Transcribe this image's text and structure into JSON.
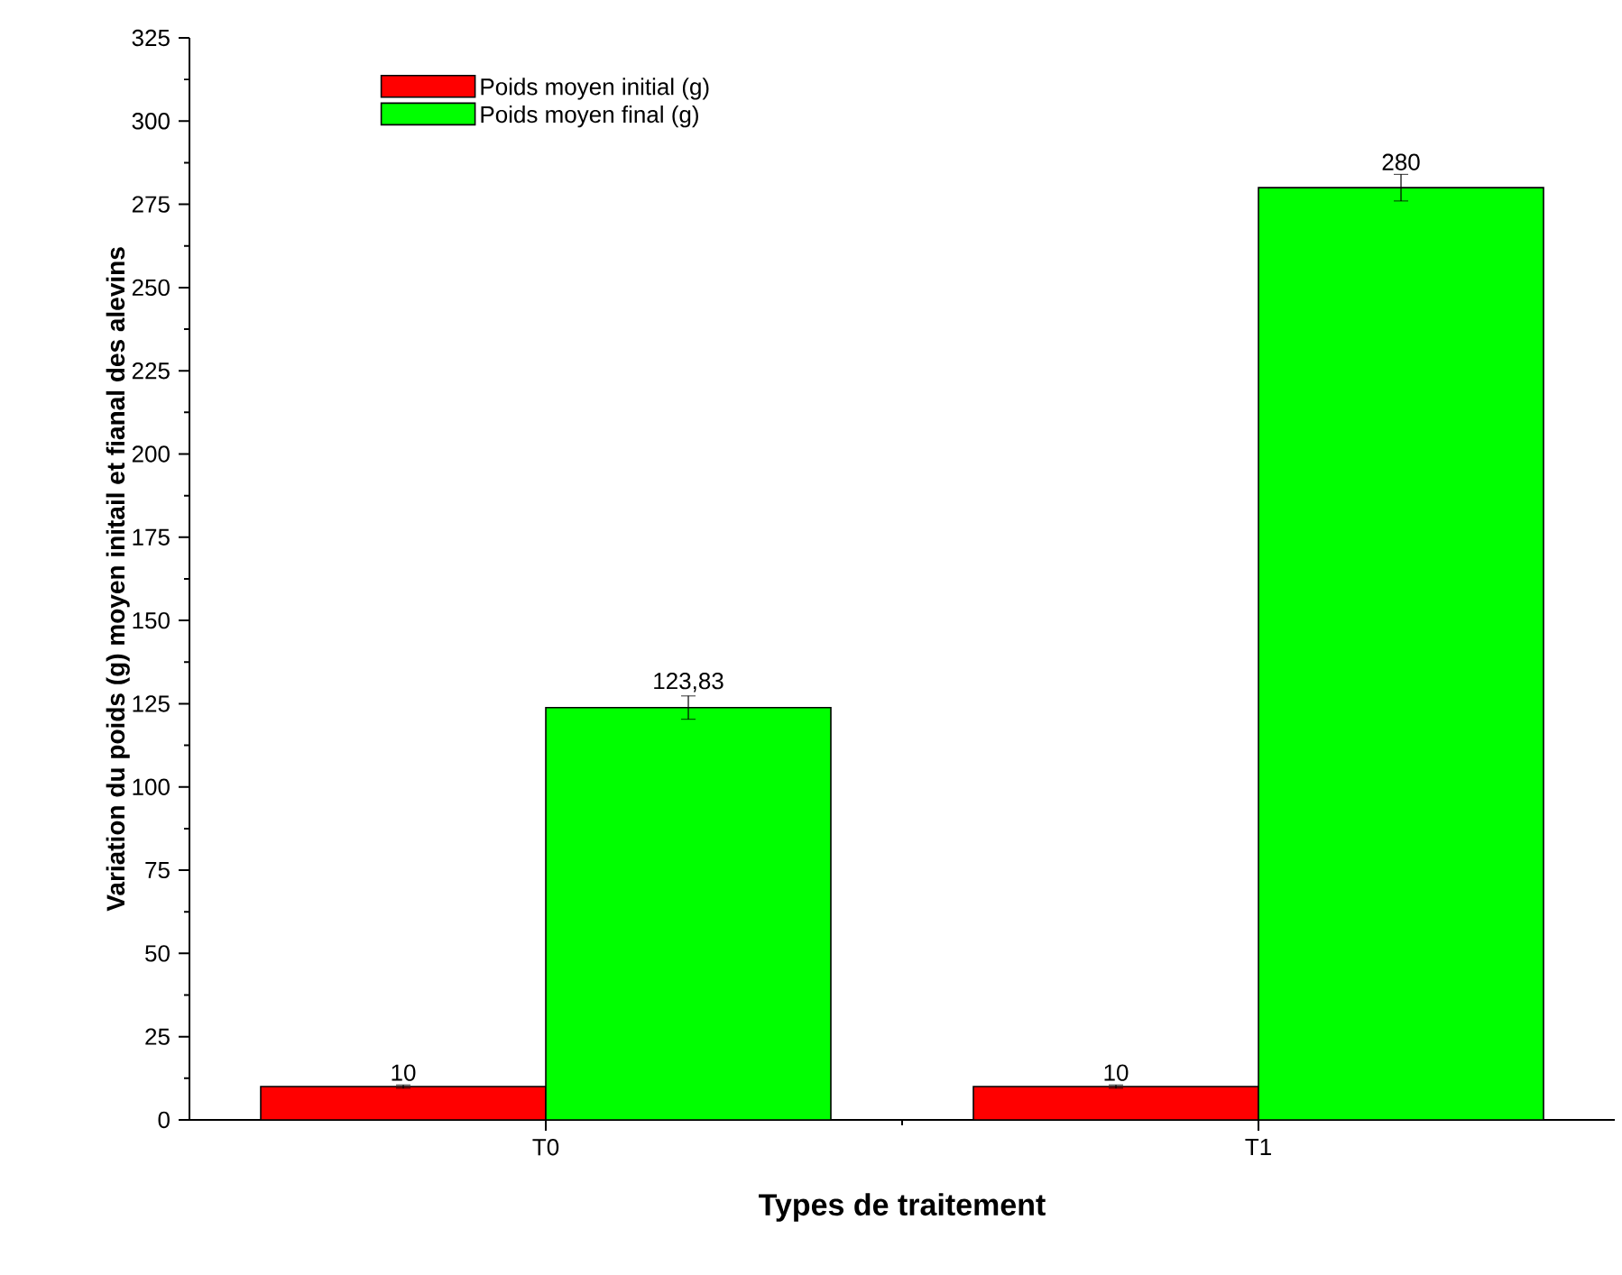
{
  "chart_data": {
    "type": "bar",
    "xlabel": "Types de traitement",
    "ylabel": "Variation du poids (g) moyen initail et fianal des alevins",
    "categories": [
      "T0",
      "T1"
    ],
    "series": [
      {
        "name": "Poids moyen initial (g)",
        "color": "#ff0000",
        "values": [
          10,
          10
        ],
        "errors": [
          0.5,
          0.5
        ],
        "value_labels": [
          "10",
          "10"
        ]
      },
      {
        "name": "Poids moyen final (g)",
        "color": "#00ff00",
        "values": [
          123.83,
          280
        ],
        "errors": [
          3.5,
          4
        ],
        "value_labels": [
          "123,83",
          "280"
        ]
      }
    ],
    "ylim": [
      0,
      325
    ],
    "yticks": [
      0,
      25,
      50,
      75,
      100,
      125,
      150,
      175,
      200,
      225,
      250,
      275,
      300,
      325
    ],
    "grid": false,
    "legend": "top left"
  }
}
